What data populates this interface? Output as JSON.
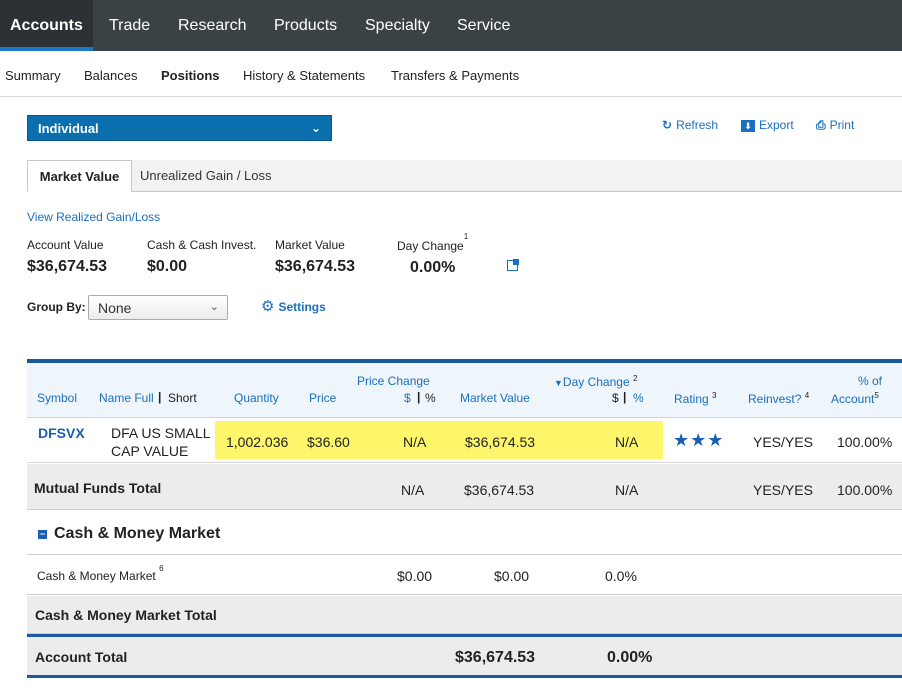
{
  "topnav": {
    "tabs": [
      "Accounts",
      "Trade",
      "Research",
      "Products",
      "Specialty",
      "Service"
    ]
  },
  "subnav": {
    "items": [
      "Summary",
      "Balances",
      "Positions",
      "History & Statements",
      "Transfers & Payments"
    ]
  },
  "account_select": {
    "value": "Individual"
  },
  "tools": {
    "refresh": "Refresh",
    "export": "Export",
    "print": "Print"
  },
  "view_tabs": {
    "market_value": "Market Value",
    "unrealized": "Unrealized Gain / Loss"
  },
  "realized_link": "View Realized Gain/Loss",
  "summary": {
    "account_value_label": "Account Value",
    "account_value": "$36,674.53",
    "cash_label": "Cash & Cash Invest.",
    "cash_value": "$0.00",
    "market_value_label": "Market Value",
    "market_value": "$36,674.53",
    "day_change_label": "Day Change",
    "day_change_sup": "1",
    "day_change_value": "0.00%"
  },
  "group_by": {
    "label": "Group By:",
    "value": "None"
  },
  "settings_label": "Settings",
  "table": {
    "headers": {
      "symbol": "Symbol",
      "name_full": "Name Full",
      "sep": "|",
      "name_short": "Short",
      "quantity": "Quantity",
      "price": "Price",
      "price_change": "Price Change",
      "price_change_dollar": "$",
      "price_change_pct": "%",
      "market_value": "Market Value",
      "day_change": "Day Change",
      "day_change_sup": "2",
      "day_change_dollar": "$",
      "day_change_pct": "%",
      "rating": "Rating",
      "rating_sup": "3",
      "reinvest": "Reinvest?",
      "reinvest_sup": "4",
      "pct_of": "% of",
      "account": "Account",
      "account_sup": "5"
    },
    "row": {
      "symbol": "DFSVX",
      "name_line1": "DFA US SMALL",
      "name_line2": "CAP VALUE",
      "quantity": "1,002.036",
      "price": "$36.60",
      "price_change": "N/A",
      "market_value": "$36,674.53",
      "day_change": "N/A",
      "rating": "★★★",
      "reinvest": "YES/YES",
      "pct_account": "100.00%"
    },
    "mutual_total": {
      "label": "Mutual Funds Total",
      "price_change": "N/A",
      "market_value": "$36,674.53",
      "day_change": "N/A",
      "reinvest": "YES/YES",
      "pct_account": "100.00%"
    },
    "cash_section": {
      "toggle": "−",
      "title": "Cash & Money Market",
      "row_label": "Cash & Money Market",
      "row_sup": "6",
      "price": "$0.00",
      "market_value": "$0.00",
      "day_change": "0.0%",
      "total_label": "Cash & Money Market Total"
    },
    "account_total": {
      "label": "Account Total",
      "market_value": "$36,674.53",
      "day_change": "0.00%"
    }
  }
}
